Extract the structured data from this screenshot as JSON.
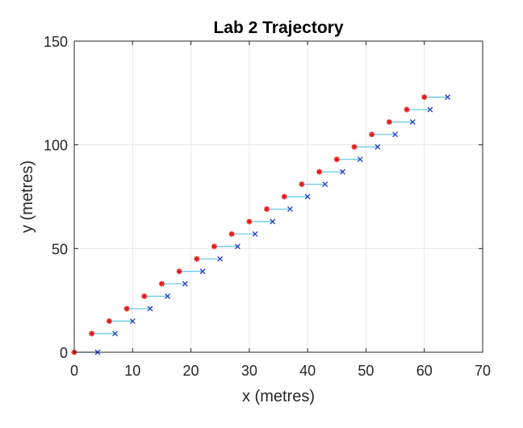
{
  "chart_data": {
    "type": "scatter",
    "title": "Lab 2 Trajectory",
    "xlabel": "x (metres)",
    "ylabel": "y (metres)",
    "xlim": [
      0,
      70
    ],
    "ylim": [
      0,
      150
    ],
    "xticks": [
      0,
      10,
      20,
      30,
      40,
      50,
      60,
      70
    ],
    "yticks": [
      0,
      50,
      100,
      150
    ],
    "grid": true,
    "legend": "none",
    "series": [
      {
        "marker": "asterisk",
        "color": "#e41a1c",
        "x": [
          0,
          3,
          6,
          9,
          12,
          15,
          18,
          21,
          24,
          27,
          30,
          33,
          36,
          39,
          42,
          45,
          48,
          51,
          54,
          57,
          60
        ],
        "y": [
          0,
          9,
          15,
          21,
          27,
          33,
          39,
          45,
          51,
          57,
          63,
          69,
          75,
          81,
          87,
          93,
          99,
          105,
          111,
          117,
          123
        ]
      },
      {
        "marker": "cross",
        "color": "#1f3bcc",
        "x": [
          4,
          7,
          10,
          13,
          16,
          19,
          22,
          25,
          28,
          31,
          34,
          37,
          40,
          43,
          46,
          49,
          52,
          55,
          58,
          61,
          64
        ],
        "y": [
          0,
          9,
          15,
          21,
          27,
          33,
          39,
          45,
          51,
          57,
          63,
          69,
          75,
          81,
          87,
          93,
          99,
          105,
          111,
          117,
          123
        ]
      }
    ],
    "connector_color": "#5bc8e8"
  }
}
